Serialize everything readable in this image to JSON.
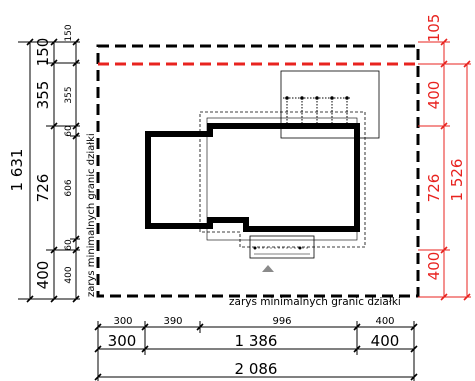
{
  "plot_outline_label": "zarys minimalnych granic działki",
  "colors": {
    "dimension_red": "#e8231f",
    "line_black": "#000000",
    "arrow_grey": "#8a8a8a"
  },
  "left_dimensions": {
    "total": "1 631",
    "segments": [
      "150",
      "355",
      "726",
      "400"
    ],
    "sub_segments": [
      "150",
      "355",
      "60",
      "606",
      "60",
      "400"
    ]
  },
  "right_dimensions": {
    "total": "1 526",
    "segments": [
      "105",
      "400",
      "726",
      "400"
    ]
  },
  "bottom_dimensions": {
    "upper_row": [
      "300",
      "390",
      "996",
      "400"
    ],
    "middle_row": [
      "300",
      "1 386",
      "400"
    ],
    "total": "2 086"
  }
}
